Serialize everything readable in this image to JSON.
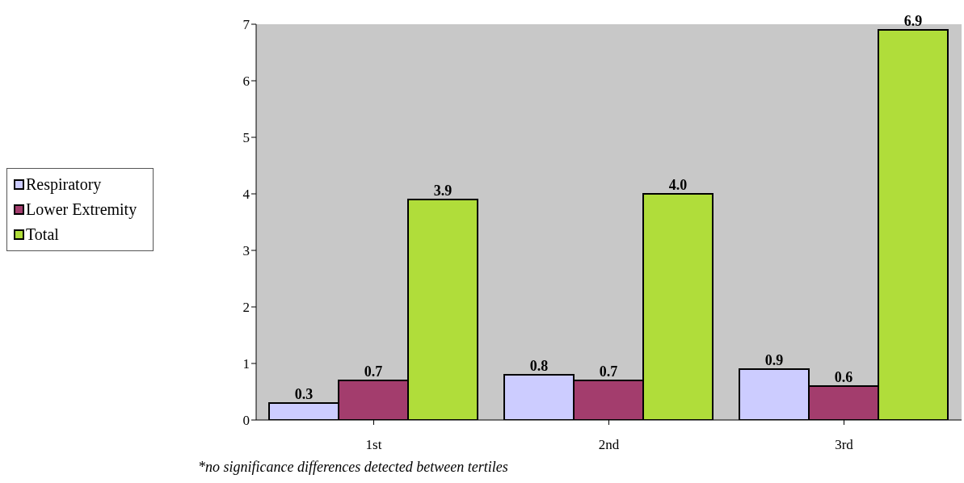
{
  "chart_data": {
    "type": "bar",
    "categories": [
      "1st",
      "2nd",
      "3rd"
    ],
    "series": [
      {
        "name": "Respiratory",
        "color": "#ccccff",
        "values": [
          0.3,
          0.8,
          0.9
        ],
        "value_labels": [
          "0.3",
          "0.8",
          "0.9"
        ]
      },
      {
        "name": "Lower Extremity",
        "color": "#a33d6d",
        "values": [
          0.7,
          0.7,
          0.6
        ],
        "value_labels": [
          "0.7",
          "0.7",
          "0.6"
        ]
      },
      {
        "name": "Total",
        "color": "#b0dd3a",
        "values": [
          3.9,
          4.0,
          6.9
        ],
        "value_labels": [
          "3.9",
          "4.0",
          "6.9"
        ]
      }
    ],
    "ylim": [
      0,
      7
    ],
    "yticks": [
      0,
      1,
      2,
      3,
      4,
      5,
      6,
      7
    ],
    "legend": "left",
    "annotations": [
      "*no significance differences detected between tertiles"
    ]
  }
}
